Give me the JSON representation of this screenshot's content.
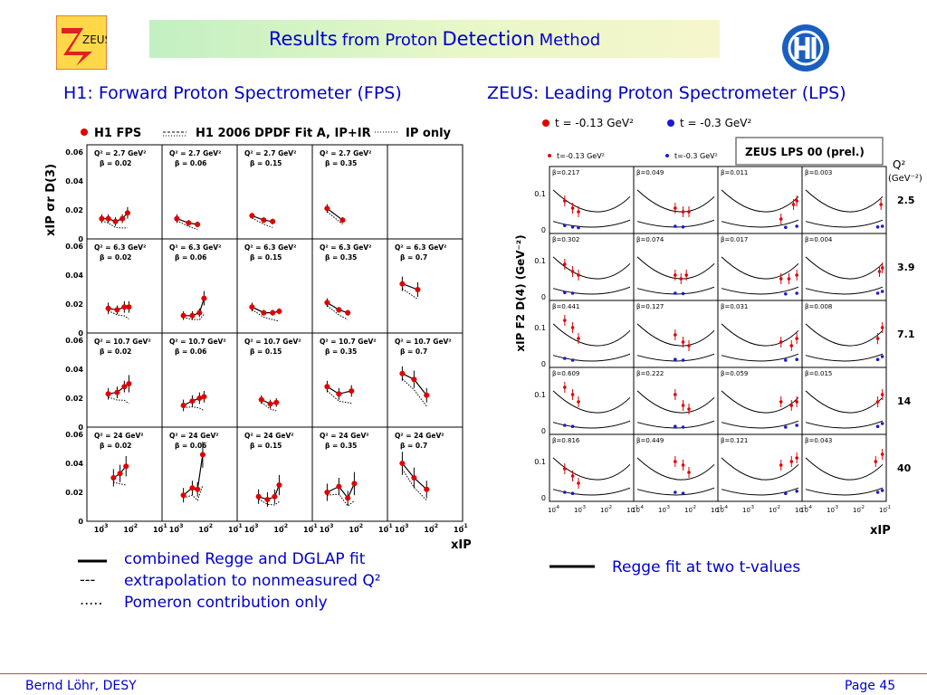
{
  "slide": {
    "title_part1": "Results",
    "title_part2": "from Proton",
    "title_part3": "Detection",
    "title_part4": "Method",
    "h1_heading": "H1: Forward Proton Spectrometer (FPS)",
    "zeus_heading": "ZEUS: Leading Proton Spectrometer (LPS)",
    "zeus_logo_text": "ZEUS",
    "colors": {
      "text_blue": "#0000c8",
      "data_red": "#e00000",
      "data_blue": "#1a1ad0",
      "banner_green": "#c2f0c2",
      "footer_line": "#e04040"
    }
  },
  "h1_legend": {
    "line_solid": "combined Regge and DGLAP fit",
    "line_dashed": "extrapolation to nonmeasured Q²",
    "line_dotted": "Pomeron contribution only",
    "sym_dashed": "---",
    "sym_dotted": "....."
  },
  "zeus_legend": {
    "line_solid": "Regge fit at two t-values"
  },
  "footer": {
    "left": "Bernd Löhr, DESY",
    "right": "Page 45"
  },
  "chart_data": [
    {
      "type": "scatter",
      "title": "",
      "top_legend": [
        "H1 FPS",
        "H1 2006 DPDF Fit A, IP+IR",
        "IP only"
      ],
      "ylabel": "xIP σr D(3)",
      "xlabel": "xIP",
      "x_scale": "log",
      "xlim": [
        0.0005,
        0.1
      ],
      "ylim": [
        0,
        0.06
      ],
      "y_ticks": [
        "0",
        "0.02",
        "0.04",
        "0.06"
      ],
      "x_ticks": [
        "10",
        "-3",
        "10",
        "-2",
        "10",
        "-1"
      ],
      "q2_rows": [
        "2.7",
        "6.3",
        "10.7",
        "24"
      ],
      "beta_cols": [
        "0.02",
        "0.06",
        "0.15",
        "0.35",
        "0.7"
      ],
      "q2_label_prefix": "Q² = ",
      "q2_label_suffix": " GeV²",
      "beta_label_prefix": "β = ",
      "panels": [
        [
          {
            "x": [
              0.0012,
              0.002,
              0.0035,
              0.006,
              0.009
            ],
            "y": [
              0.014,
              0.014,
              0.012,
              0.014,
              0.018
            ],
            "err": [
              0.003,
              0.003,
              0.003,
              0.003,
              0.004
            ]
          },
          {
            "x": [
              0.0012,
              0.003,
              0.006
            ],
            "y": [
              0.014,
              0.011,
              0.01
            ],
            "err": [
              0.003,
              0.002,
              0.002
            ]
          },
          {
            "x": [
              0.0012,
              0.003,
              0.006
            ],
            "y": [
              0.016,
              0.013,
              0.012
            ],
            "err": [
              0.002,
              0.002,
              0.002
            ]
          },
          {
            "x": [
              0.0012,
              0.004
            ],
            "y": [
              0.021,
              0.013
            ],
            "err": [
              0.003,
              0.002
            ]
          },
          null
        ],
        [
          {
            "x": [
              0.002,
              0.004,
              0.007,
              0.01
            ],
            "y": [
              0.017,
              0.016,
              0.018,
              0.018
            ],
            "err": [
              0.004,
              0.003,
              0.004,
              0.004
            ]
          },
          {
            "x": [
              0.002,
              0.004,
              0.007,
              0.01
            ],
            "y": [
              0.012,
              0.012,
              0.014,
              0.024
            ],
            "err": [
              0.003,
              0.003,
              0.003,
              0.005
            ]
          },
          {
            "x": [
              0.0012,
              0.003,
              0.006,
              0.01
            ],
            "y": [
              0.018,
              0.014,
              0.014,
              0.015
            ],
            "err": [
              0.003,
              0.002,
              0.002,
              0.002
            ]
          },
          {
            "x": [
              0.0012,
              0.003,
              0.006
            ],
            "y": [
              0.021,
              0.016,
              0.014
            ],
            "err": [
              0.003,
              0.002,
              0.002
            ]
          },
          {
            "x": [
              0.0012,
              0.004
            ],
            "y": [
              0.034,
              0.03
            ],
            "err": [
              0.005,
              0.005
            ]
          }
        ],
        [
          {
            "x": [
              0.002,
              0.004,
              0.007,
              0.01
            ],
            "y": [
              0.023,
              0.024,
              0.028,
              0.03
            ],
            "err": [
              0.004,
              0.004,
              0.004,
              0.006
            ]
          },
          {
            "x": [
              0.002,
              0.004,
              0.007,
              0.01
            ],
            "y": [
              0.015,
              0.018,
              0.02,
              0.021
            ],
            "err": [
              0.004,
              0.004,
              0.004,
              0.004
            ]
          },
          {
            "x": [
              0.0025,
              0.005,
              0.008
            ],
            "y": [
              0.019,
              0.016,
              0.017
            ],
            "err": [
              0.003,
              0.003,
              0.003
            ]
          },
          {
            "x": [
              0.0012,
              0.003,
              0.008
            ],
            "y": [
              0.028,
              0.023,
              0.025
            ],
            "err": [
              0.004,
              0.004,
              0.004
            ]
          },
          {
            "x": [
              0.0012,
              0.003,
              0.008
            ],
            "y": [
              0.037,
              0.033,
              0.022
            ],
            "err": [
              0.005,
              0.006,
              0.005
            ]
          }
        ],
        [
          {
            "x": [
              0.003,
              0.005,
              0.008
            ],
            "y": [
              0.03,
              0.033,
              0.038
            ],
            "err": [
              0.006,
              0.006,
              0.007
            ]
          },
          {
            "x": [
              0.002,
              0.004,
              0.006,
              0.009
            ],
            "y": [
              0.018,
              0.023,
              0.022,
              0.046
            ],
            "err": [
              0.005,
              0.005,
              0.005,
              0.009
            ]
          },
          {
            "x": [
              0.002,
              0.004,
              0.007,
              0.01
            ],
            "y": [
              0.017,
              0.015,
              0.017,
              0.025
            ],
            "err": [
              0.005,
              0.005,
              0.005,
              0.007
            ]
          },
          {
            "x": [
              0.0012,
              0.003,
              0.006,
              0.01
            ],
            "y": [
              0.02,
              0.024,
              0.016,
              0.026
            ],
            "err": [
              0.006,
              0.006,
              0.005,
              0.008
            ]
          },
          {
            "x": [
              0.0012,
              0.003,
              0.008
            ],
            "y": [
              0.04,
              0.03,
              0.022
            ],
            "err": [
              0.008,
              0.007,
              0.006
            ]
          }
        ]
      ]
    },
    {
      "type": "scatter",
      "title": "",
      "top_legend_upper": [
        "t = -0.13 GeV²",
        "t = -0.3 GeV²"
      ],
      "top_legend_lower": [
        "t=-0.13 GeV²",
        "t=-0.3 GeV²"
      ],
      "box_label": "ZEUS LPS 00 (prel.)",
      "ylabel": "xIP F2 D(4) (GeV⁻²)",
      "xlabel": "xIP",
      "x_scale": "log",
      "xlim": [
        0.0001,
        0.1
      ],
      "ylim": [
        0,
        0.15
      ],
      "y_ticks": [
        "0",
        "0.1"
      ],
      "x_tick_mantissa": "10",
      "x_tick_exponents": [
        "-4",
        "-3",
        "-2",
        "-1"
      ],
      "q2_header": "Q²",
      "q2_unit": "(GeV⁻²)",
      "q2_rows": [
        "2.5",
        "3.9",
        "7.1",
        "14",
        "40"
      ],
      "beta_labels": [
        [
          "β=0.217",
          "β=0.049",
          "β=0.011",
          "β=0.003"
        ],
        [
          "β=0.302",
          "β=0.074",
          "β=0.017",
          "β=0.004"
        ],
        [
          "β=0.441",
          "β=0.127",
          "β=0.031",
          "β=0.008"
        ],
        [
          "β=0.609",
          "β=0.222",
          "β=0.059",
          "β=0.015"
        ],
        [
          "β=0.816",
          "β=0.449",
          "β=0.121",
          "β=0.043"
        ]
      ],
      "panels": [
        [
          {
            "red": [
              [
                0.0003,
                0.08
              ],
              [
                0.0006,
                0.06
              ],
              [
                0.001,
                0.05
              ]
            ],
            "blue": [
              [
                0.0003,
                0.012
              ],
              [
                0.0006,
                0.008
              ],
              [
                0.001,
                0.006
              ]
            ]
          },
          {
            "red": [
              [
                0.003,
                0.06
              ],
              [
                0.006,
                0.05
              ],
              [
                0.01,
                0.05
              ]
            ],
            "blue": [
              [
                0.003,
                0.01
              ],
              [
                0.006,
                0.008
              ]
            ]
          },
          {
            "red": [
              [
                0.02,
                0.03
              ],
              [
                0.06,
                0.07
              ],
              [
                0.08,
                0.08
              ]
            ],
            "blue": [
              [
                0.03,
                0.007
              ],
              [
                0.08,
                0.01
              ]
            ]
          },
          {
            "red": [
              [
                0.08,
                0.07
              ]
            ],
            "blue": [
              [
                0.06,
                0.008
              ],
              [
                0.09,
                0.01
              ]
            ]
          }
        ],
        [
          {
            "red": [
              [
                0.0003,
                0.09
              ],
              [
                0.0006,
                0.07
              ],
              [
                0.001,
                0.06
              ]
            ],
            "blue": [
              [
                0.0003,
                0.012
              ],
              [
                0.0006,
                0.01
              ]
            ]
          },
          {
            "red": [
              [
                0.003,
                0.06
              ],
              [
                0.005,
                0.05
              ],
              [
                0.008,
                0.06
              ]
            ],
            "blue": [
              [
                0.003,
                0.01
              ],
              [
                0.006,
                0.009
              ]
            ]
          },
          {
            "red": [
              [
                0.02,
                0.05
              ],
              [
                0.04,
                0.05
              ],
              [
                0.08,
                0.06
              ]
            ],
            "blue": [
              [
                0.03,
                0.008
              ],
              [
                0.08,
                0.01
              ]
            ]
          },
          {
            "red": [
              [
                0.07,
                0.07
              ],
              [
                0.09,
                0.08
              ]
            ],
            "blue": [
              [
                0.06,
                0.01
              ],
              [
                0.09,
                0.015
              ]
            ]
          }
        ],
        [
          {
            "red": [
              [
                0.0003,
                0.12
              ],
              [
                0.0006,
                0.1
              ],
              [
                0.001,
                0.07
              ]
            ],
            "blue": [
              [
                0.0003,
                0.015
              ],
              [
                0.0006,
                0.01
              ]
            ]
          },
          {
            "red": [
              [
                0.003,
                0.08
              ],
              [
                0.006,
                0.06
              ],
              [
                0.01,
                0.05
              ]
            ],
            "blue": [
              [
                0.003,
                0.012
              ],
              [
                0.006,
                0.01
              ]
            ]
          },
          {
            "red": [
              [
                0.02,
                0.06
              ],
              [
                0.05,
                0.05
              ],
              [
                0.08,
                0.07
              ]
            ],
            "blue": [
              [
                0.03,
                0.01
              ],
              [
                0.08,
                0.012
              ]
            ]
          },
          {
            "red": [
              [
                0.06,
                0.07
              ],
              [
                0.09,
                0.1
              ]
            ],
            "blue": [
              [
                0.06,
                0.012
              ],
              [
                0.09,
                0.02
              ]
            ]
          }
        ],
        [
          {
            "red": [
              [
                0.0003,
                0.12
              ],
              [
                0.0006,
                0.1
              ],
              [
                0.001,
                0.08
              ]
            ],
            "blue": [
              [
                0.0003,
                0.015
              ],
              [
                0.0006,
                0.012
              ]
            ]
          },
          {
            "red": [
              [
                0.003,
                0.1
              ],
              [
                0.006,
                0.07
              ],
              [
                0.01,
                0.06
              ]
            ],
            "blue": [
              [
                0.003,
                0.012
              ],
              [
                0.006,
                0.01
              ]
            ]
          },
          {
            "red": [
              [
                0.02,
                0.08
              ],
              [
                0.05,
                0.07
              ],
              [
                0.08,
                0.08
              ]
            ],
            "blue": [
              [
                0.03,
                0.01
              ],
              [
                0.08,
                0.015
              ]
            ]
          },
          {
            "red": [
              [
                0.06,
                0.08
              ],
              [
                0.09,
                0.1
              ]
            ],
            "blue": [
              [
                0.06,
                0.012
              ],
              [
                0.09,
                0.02
              ]
            ]
          }
        ],
        [
          {
            "red": [
              [
                0.0003,
                0.08
              ],
              [
                0.0006,
                0.06
              ],
              [
                0.001,
                0.04
              ]
            ],
            "blue": [
              [
                0.0003,
                0.015
              ],
              [
                0.0006,
                0.012
              ]
            ]
          },
          {
            "red": [
              [
                0.003,
                0.1
              ],
              [
                0.006,
                0.09
              ],
              [
                0.01,
                0.07
              ]
            ],
            "blue": [
              [
                0.003,
                0.015
              ],
              [
                0.006,
                0.012
              ]
            ]
          },
          {
            "red": [
              [
                0.02,
                0.09
              ],
              [
                0.05,
                0.1
              ],
              [
                0.08,
                0.11
              ]
            ],
            "blue": [
              [
                0.03,
                0.012
              ],
              [
                0.08,
                0.018
              ]
            ]
          },
          {
            "red": [
              [
                0.05,
                0.1
              ],
              [
                0.09,
                0.12
              ]
            ],
            "blue": [
              [
                0.06,
                0.015
              ],
              [
                0.09,
                0.02
              ]
            ]
          }
        ]
      ]
    }
  ]
}
